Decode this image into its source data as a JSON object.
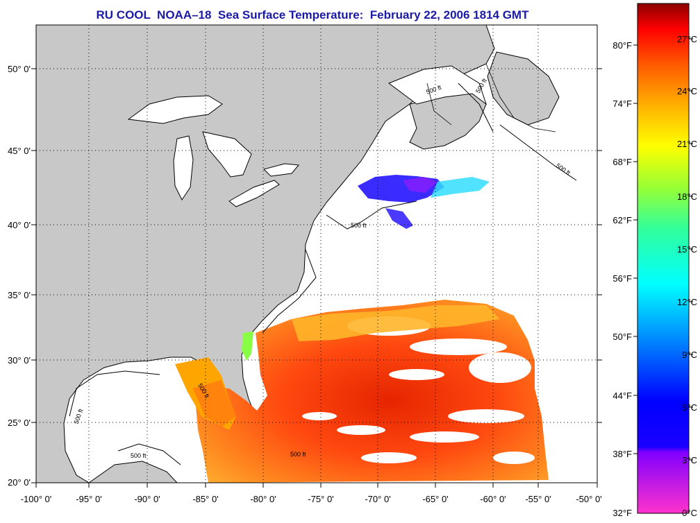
{
  "title": "RU COOL  NOAA–18  Sea Surface Temperature:  February 22, 2006 1814 GMT",
  "map": {
    "lon_labels": [
      "-100° 0'",
      "-95° 0'",
      "-90° 0'",
      "-85° 0'",
      "-80° 0'",
      "-75° 0'",
      "-70° 0'",
      "-65° 0'",
      "-60° 0'",
      "-55° 0'",
      "-50° 0'"
    ],
    "lat_labels": [
      "50° 0'",
      "45° 0'",
      "40° 0'",
      "35° 0'",
      "30° 0'",
      "25° 0'",
      "20° 0'"
    ],
    "isobath_labels": [
      "500 ft",
      "500 ft",
      "500 ft",
      "500 ft",
      "500 ft",
      "500 ft",
      "500 ft",
      "500 ft"
    ],
    "land_color": "#c8c8c8",
    "ocean_color": "#ffffff"
  },
  "colorbar": {
    "fahrenheit_labels": [
      "80°F",
      "74°F",
      "68°F",
      "62°F",
      "56°F",
      "50°F",
      "44°F",
      "38°F",
      "32°F"
    ],
    "celsius_labels": [
      "27°C",
      "24°C",
      "21°C",
      "18°C",
      "15°C",
      "12°C",
      "9°C",
      "6°C",
      "3°C",
      "0°C"
    ],
    "colors": [
      "#8b0000",
      "#ff0000",
      "#ff8c00",
      "#ffff00",
      "#7fff00",
      "#00ffff",
      "#0066ff",
      "#0000ff",
      "#8000ff",
      "#ff33cc"
    ]
  }
}
